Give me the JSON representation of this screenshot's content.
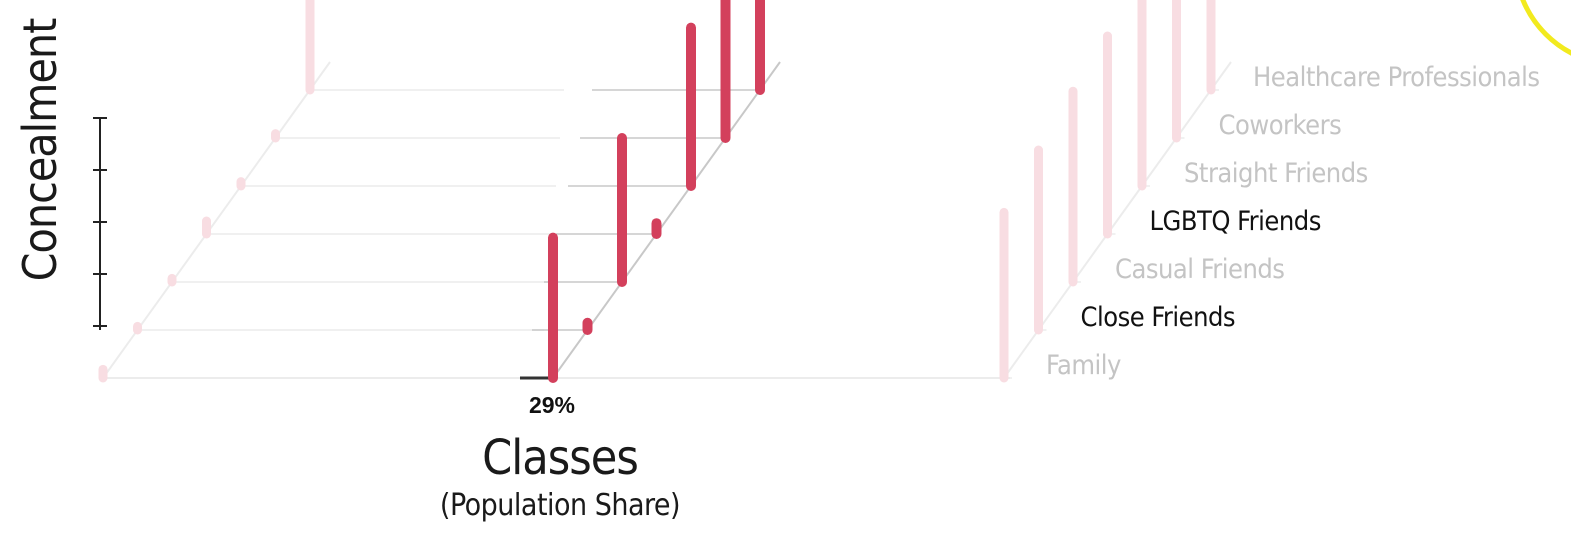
{
  "chart_data": {
    "type": "3d-bar",
    "ylabel": "Concealment",
    "xlabel": "Classes",
    "xlabel_sub": "(Population Share)",
    "highlight_class_share": "29%",
    "categories": [
      "Family",
      "Close Friends",
      "Casual Friends",
      "LGBTQ Friends",
      "Straight Friends",
      "Coworkers",
      "Healthcare Professionals"
    ],
    "highlighted_categories": [
      "Close Friends",
      "LGBTQ Friends"
    ],
    "y_ticks": 5,
    "series": [
      {
        "class": "left (faded)",
        "faded": true,
        "values": [
          0.12,
          0.05,
          0.05,
          0.18,
          0.06,
          0.06,
          1.7
        ]
      },
      {
        "class": "middle (29%)",
        "faded": false,
        "values": [
          1.95,
          0.1,
          2.0,
          0.15,
          2.2,
          2.5,
          2.7
        ]
      },
      {
        "class": "right (faded)",
        "faded": true,
        "values": [
          2.3,
          2.5,
          2.65,
          2.75,
          2.85,
          2.95,
          3.05
        ]
      }
    ],
    "colors": {
      "highlight": "#d3405c",
      "faded": "#f8dde2",
      "grid": "#c8c8c8",
      "faded_grid": "#ececec",
      "label_dim": "#c4c4c4",
      "label_dark": "#111111"
    }
  }
}
